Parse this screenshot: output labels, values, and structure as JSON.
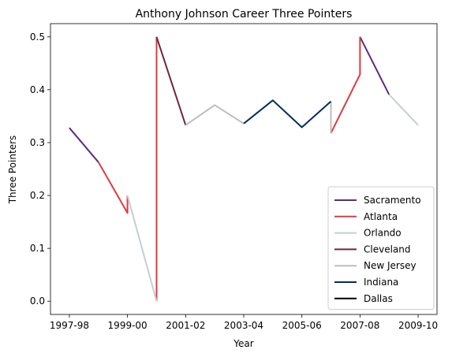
{
  "chart_data": {
    "type": "line",
    "title": "Anthony Johnson  Career Three Pointers",
    "xlabel": "Year",
    "ylabel": "Three Pointers",
    "x_ticks": [
      "1997-98",
      "1999-00",
      "2001-02",
      "2003-04",
      "2005-06",
      "2007-08",
      "2009-10"
    ],
    "y_ticks": [
      "0.0",
      "0.1",
      "0.2",
      "0.3",
      "0.4",
      "0.5"
    ],
    "xlim": [
      -0.65,
      12.65
    ],
    "ylim": [
      -0.025,
      0.525
    ],
    "grid": false,
    "legend_position": "lower-right",
    "series": [
      {
        "name": "Sacramento",
        "color": "#5a2d81",
        "segments": [
          [
            [
              0,
              0.328
            ],
            [
              1,
              0.263
            ]
          ],
          [
            [
              10,
              0.5
            ],
            [
              11,
              0.391
            ]
          ]
        ]
      },
      {
        "name": "Atlanta",
        "color": "#e03a3e",
        "segments": [
          [
            [
              1,
              0.263
            ],
            [
              2,
              0.167
            ],
            [
              2,
              0.2
            ]
          ],
          [
            [
              3,
              0.0
            ],
            [
              3,
              0.5
            ]
          ],
          [
            [
              9,
              0.318
            ],
            [
              10,
              0.429
            ],
            [
              10,
              0.5
            ]
          ]
        ]
      },
      {
        "name": "Orlando",
        "color": "#c4ced4",
        "segments": [
          [
            [
              2,
              0.2
            ],
            [
              3,
              0.0
            ]
          ],
          [
            [
              11,
              0.391
            ],
            [
              12,
              0.333
            ]
          ]
        ]
      },
      {
        "name": "Cleveland",
        "color": "#6f263d",
        "segments": [
          [
            [
              3,
              0.5
            ],
            [
              4,
              0.333
            ]
          ]
        ]
      },
      {
        "name": "New Jersey",
        "color": "#bdbdbd",
        "segments": [
          [
            [
              4,
              0.333
            ],
            [
              5,
              0.371
            ],
            [
              6,
              0.336
            ]
          ],
          [
            [
              9,
              0.378
            ],
            [
              9,
              0.318
            ]
          ]
        ]
      },
      {
        "name": "Indiana",
        "color": "#002d62",
        "segments": [
          [
            [
              6,
              0.336
            ],
            [
              7,
              0.38
            ],
            [
              8,
              0.329
            ],
            [
              9,
              0.378
            ]
          ]
        ]
      },
      {
        "name": "Dallas",
        "color": "#000000",
        "segments": []
      }
    ]
  }
}
